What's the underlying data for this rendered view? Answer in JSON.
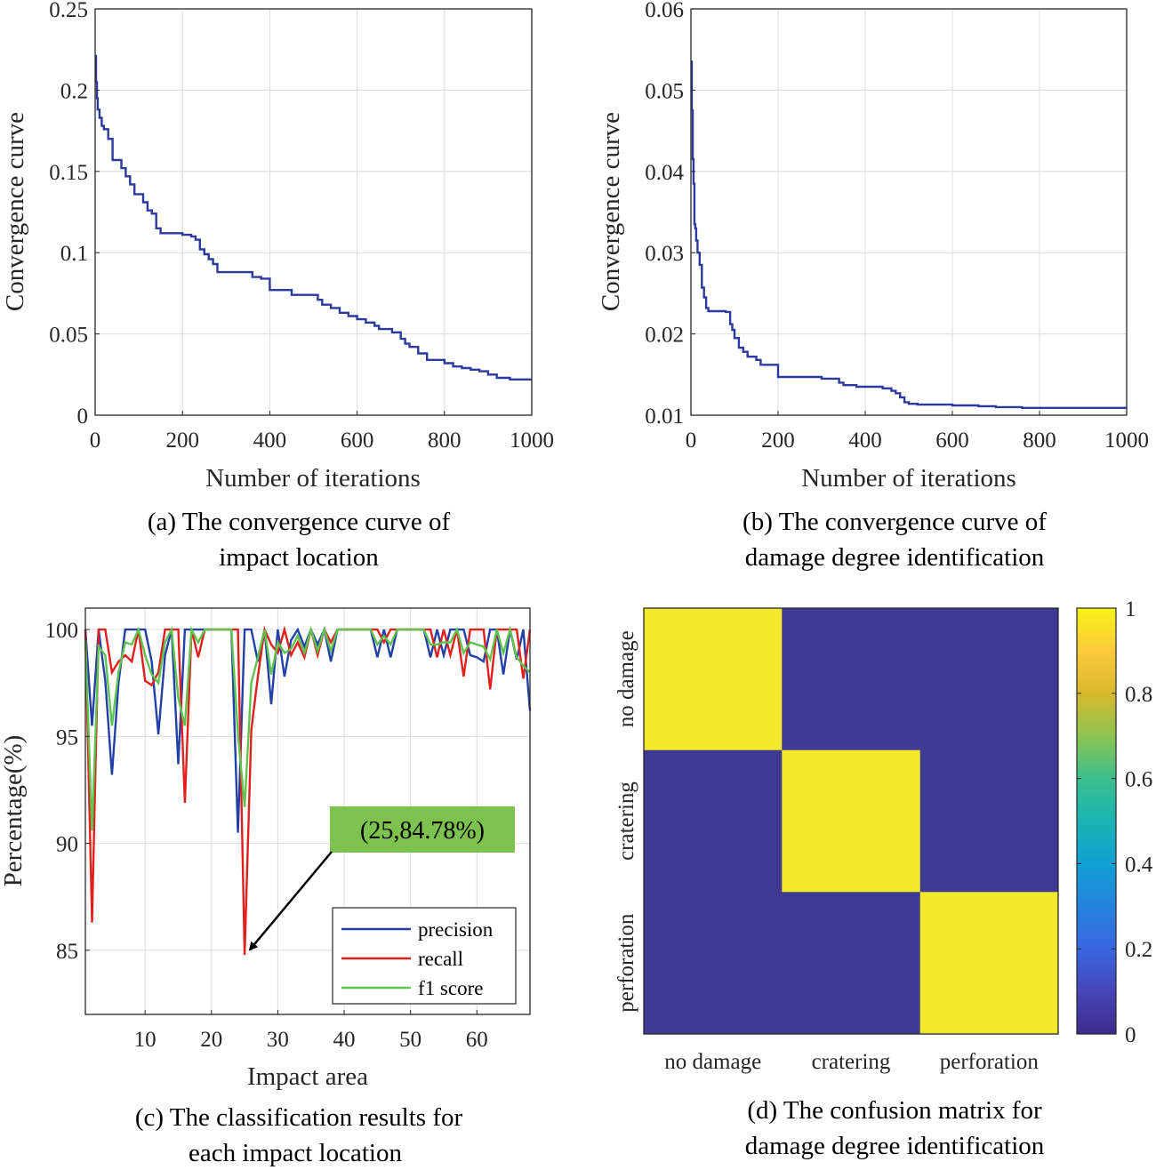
{
  "colors": {
    "convergence": "#2a3a9e",
    "precision": "#2240a8",
    "recall": "#e0201c",
    "f1": "#5fc44f",
    "matrix_low": "#3e3993",
    "matrix_high": "#f3e92a",
    "annotation_bg": "#7dc14f"
  },
  "chart_data": [
    {
      "id": "a",
      "type": "line",
      "caption_line1": "(a) The convergence curve of",
      "caption_line2": "impact location",
      "xlabel": "Number of iterations",
      "ylabel": "Convergence curve",
      "xlim": [
        0,
        1000
      ],
      "ylim": [
        0,
        0.25
      ],
      "xticks": [
        0,
        200,
        400,
        600,
        800,
        1000
      ],
      "xtick_labels": [
        "0",
        "200",
        "400",
        "600",
        "800",
        "1000"
      ],
      "yticks": [
        0,
        0.05,
        0.1,
        0.15,
        0.2,
        0.25
      ],
      "ytick_labels": [
        "0",
        "0.05",
        "0.1",
        "0.15",
        "0.2",
        "0.25"
      ],
      "grid": true,
      "series": [
        {
          "name": "convergence",
          "x": [
            0,
            2,
            4,
            6,
            10,
            15,
            20,
            30,
            40,
            60,
            70,
            80,
            90,
            100,
            110,
            120,
            130,
            140,
            150,
            180,
            200,
            220,
            230,
            240,
            250,
            260,
            270,
            280,
            300,
            350,
            360,
            380,
            400,
            430,
            450,
            480,
            500,
            510,
            520,
            540,
            560,
            580,
            600,
            620,
            640,
            650,
            660,
            680,
            700,
            710,
            720,
            740,
            760,
            800,
            820,
            840,
            860,
            880,
            900,
            920,
            950,
            1000
          ],
          "y": [
            0.221,
            0.205,
            0.195,
            0.188,
            0.183,
            0.178,
            0.176,
            0.17,
            0.157,
            0.152,
            0.147,
            0.142,
            0.136,
            0.136,
            0.131,
            0.126,
            0.124,
            0.115,
            0.112,
            0.112,
            0.111,
            0.11,
            0.108,
            0.102,
            0.099,
            0.096,
            0.093,
            0.088,
            0.088,
            0.088,
            0.085,
            0.084,
            0.077,
            0.077,
            0.074,
            0.074,
            0.074,
            0.071,
            0.068,
            0.066,
            0.063,
            0.061,
            0.059,
            0.057,
            0.055,
            0.053,
            0.053,
            0.051,
            0.047,
            0.044,
            0.042,
            0.038,
            0.034,
            0.032,
            0.03,
            0.029,
            0.028,
            0.027,
            0.025,
            0.023,
            0.022,
            0.022
          ]
        }
      ]
    },
    {
      "id": "b",
      "type": "line",
      "caption_line1": "(b) The convergence curve of",
      "caption_line2": "damage degree identification",
      "xlabel": "Number of iterations",
      "ylabel": "Convergence curve",
      "xlim": [
        0,
        1000
      ],
      "ylim": [
        0.01,
        0.06
      ],
      "xticks": [
        0,
        200,
        400,
        600,
        800,
        1000
      ],
      "xtick_labels": [
        "0",
        "200",
        "400",
        "600",
        "800",
        "1000"
      ],
      "yticks": [
        0.01,
        0.02,
        0.03,
        0.04,
        0.05,
        0.06
      ],
      "ytick_labels": [
        "0.01",
        "0.02",
        "0.03",
        "0.04",
        "0.05",
        "0.06"
      ],
      "grid": true,
      "series": [
        {
          "name": "convergence",
          "x": [
            0,
            2,
            4,
            6,
            8,
            10,
            12,
            15,
            20,
            25,
            30,
            35,
            40,
            50,
            60,
            80,
            90,
            95,
            100,
            110,
            120,
            130,
            150,
            160,
            200,
            280,
            300,
            340,
            350,
            380,
            400,
            440,
            460,
            470,
            480,
            490,
            500,
            520,
            600,
            660,
            700,
            760,
            800,
            1000
          ],
          "y": [
            0.0535,
            0.0475,
            0.0415,
            0.0385,
            0.0335,
            0.033,
            0.0315,
            0.03,
            0.0285,
            0.0257,
            0.0245,
            0.0232,
            0.0228,
            0.0228,
            0.0228,
            0.0227,
            0.0212,
            0.0205,
            0.0195,
            0.0183,
            0.0178,
            0.0172,
            0.0168,
            0.0162,
            0.0147,
            0.0147,
            0.0145,
            0.014,
            0.0137,
            0.0135,
            0.0135,
            0.0133,
            0.013,
            0.0127,
            0.0122,
            0.0116,
            0.0114,
            0.0113,
            0.0112,
            0.0111,
            0.011,
            0.0109,
            0.0109,
            0.0109
          ]
        }
      ]
    },
    {
      "id": "c",
      "type": "line",
      "caption_line1": "(c) The classification results for",
      "caption_line2": "each impact location",
      "xlabel": "Impact area",
      "ylabel": "Percentage(%)",
      "xlim": [
        1,
        68
      ],
      "ylim": [
        82,
        101
      ],
      "xticks": [
        10,
        20,
        30,
        40,
        50,
        60
      ],
      "xtick_labels": [
        "10",
        "20",
        "30",
        "40",
        "50",
        "60"
      ],
      "yticks": [
        85,
        90,
        95,
        100
      ],
      "ytick_labels": [
        "85",
        "90",
        "95",
        "100"
      ],
      "grid": true,
      "legend": {
        "position": "lower-right",
        "entries": [
          "precision",
          "recall",
          "f1 score"
        ]
      },
      "annotation": {
        "text": "(25,84.78%)",
        "point": [
          25,
          84.78
        ]
      },
      "x": [
        1,
        2,
        3,
        4,
        5,
        6,
        7,
        8,
        9,
        10,
        11,
        12,
        13,
        14,
        15,
        16,
        17,
        18,
        19,
        20,
        21,
        22,
        23,
        24,
        25,
        26,
        27,
        28,
        29,
        30,
        31,
        32,
        33,
        34,
        35,
        36,
        37,
        38,
        39,
        40,
        41,
        42,
        43,
        44,
        45,
        46,
        47,
        48,
        49,
        50,
        51,
        52,
        53,
        54,
        55,
        56,
        57,
        58,
        59,
        60,
        61,
        62,
        63,
        64,
        65,
        66,
        67,
        68
      ],
      "series": [
        {
          "name": "precision",
          "values": [
            100,
            95.5,
            100,
            97.6,
            93.2,
            97.5,
            100,
            100,
            100,
            100,
            98.5,
            95.1,
            98.8,
            100,
            93.7,
            100,
            100,
            100,
            100,
            100,
            100,
            100,
            100,
            90.5,
            100,
            100,
            98.5,
            100,
            96.5,
            100,
            97.8,
            99.5,
            100,
            99.2,
            100,
            99.3,
            100,
            98.5,
            100,
            100,
            100,
            100,
            100,
            100,
            98.7,
            100,
            98.7,
            100,
            100,
            100,
            100,
            100,
            98.7,
            100,
            98.8,
            100,
            100,
            100,
            98.8,
            98.7,
            98.5,
            100,
            100,
            97.9,
            100,
            98.6,
            100,
            96.2
          ]
        },
        {
          "name": "recall",
          "values": [
            100,
            86.3,
            100,
            100,
            98,
            98.5,
            98.8,
            98.5,
            100,
            97.6,
            97.4,
            98,
            100,
            100,
            100,
            91.9,
            100,
            98.7,
            100,
            100,
            100,
            100,
            100,
            100,
            84.78,
            95.3,
            97.8,
            100,
            99.3,
            98.9,
            100,
            98.8,
            99.4,
            98.7,
            100,
            98.8,
            100,
            99.4,
            100,
            100,
            100,
            100,
            100,
            100,
            100,
            99.4,
            100,
            100,
            100,
            100,
            100,
            100,
            100,
            98.7,
            100,
            98.8,
            100,
            97.8,
            100,
            100,
            100,
            97.2,
            100,
            100,
            100,
            100,
            97.7,
            100
          ]
        },
        {
          "name": "f1 score",
          "values": [
            99.5,
            90.6,
            99.2,
            98.8,
            95.5,
            98,
            99.4,
            99.3,
            100,
            98.8,
            97.9,
            97.5,
            99.4,
            100,
            96.8,
            95.5,
            100,
            99.4,
            100,
            100,
            100,
            100,
            100,
            95.1,
            91.7,
            97.5,
            98.7,
            100,
            97.9,
            99.4,
            98.9,
            99.1,
            99.7,
            98.9,
            100,
            99,
            100,
            99,
            100,
            100,
            100,
            100,
            100,
            100,
            99.3,
            99.7,
            99.3,
            100,
            100,
            100,
            100,
            100,
            99.3,
            99.3,
            99.4,
            99.4,
            100,
            98.9,
            99.4,
            99.3,
            99.2,
            98.6,
            100,
            98.9,
            100,
            98.7,
            98.3,
            98
          ]
        }
      ]
    },
    {
      "id": "d",
      "type": "heatmap",
      "caption_line1": "(d) The confusion matrix for",
      "caption_line2": "damage degree identification",
      "row_labels": [
        "no damage",
        "cratering",
        "perforation"
      ],
      "col_labels": [
        "no damage",
        "cratering",
        "perforation"
      ],
      "matrix": [
        [
          1,
          0,
          0
        ],
        [
          0,
          1,
          0
        ],
        [
          0,
          0,
          1
        ]
      ],
      "colorbar": {
        "range": [
          0,
          1
        ],
        "ticks": [
          0,
          0.2,
          0.4,
          0.6,
          0.8,
          1
        ],
        "tick_labels": [
          "0",
          "0.2",
          "0.4",
          "0.6",
          "0.8",
          "1"
        ]
      }
    }
  ]
}
